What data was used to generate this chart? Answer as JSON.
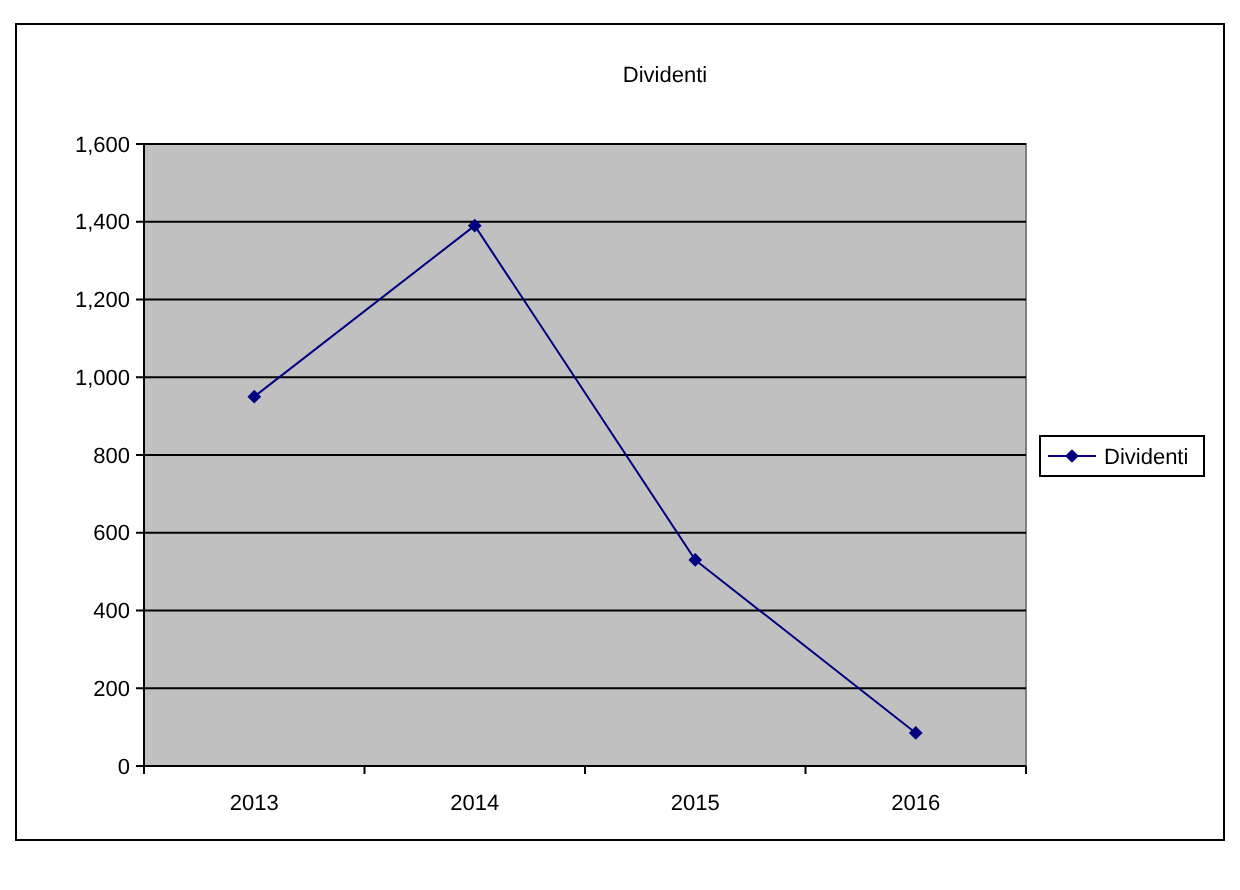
{
  "chart_data": {
    "type": "line",
    "title": "Dividenti",
    "categories": [
      "2013",
      "2014",
      "2015",
      "2016"
    ],
    "series": [
      {
        "name": "Dividenti",
        "color": "#000080",
        "values": [
          950,
          1390,
          530,
          85
        ]
      }
    ],
    "ylim": [
      0,
      1600
    ],
    "yticks": [
      {
        "value": 0,
        "label": "0"
      },
      {
        "value": 200,
        "label": "200"
      },
      {
        "value": 400,
        "label": "400"
      },
      {
        "value": 600,
        "label": "600"
      },
      {
        "value": 800,
        "label": "800"
      },
      {
        "value": 1000,
        "label": "1,000"
      },
      {
        "value": 1200,
        "label": "1,200"
      },
      {
        "value": 1400,
        "label": "1,400"
      },
      {
        "value": 1600,
        "label": "1,600"
      }
    ],
    "grid": "y",
    "legend": "right",
    "marker": "diamond",
    "line_style": "solid"
  }
}
